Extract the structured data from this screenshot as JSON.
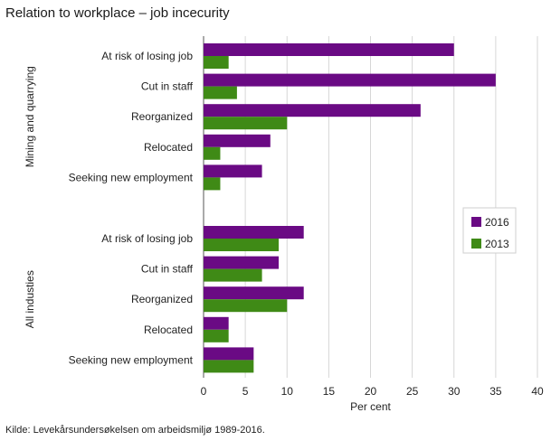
{
  "chart_data": {
    "type": "bar",
    "orientation": "horizontal",
    "title": "Relation to workplace – job incecurity",
    "xlabel": "Per cent",
    "xlim": [
      0,
      40
    ],
    "xticks": [
      0,
      5,
      10,
      15,
      20,
      25,
      30,
      35,
      40
    ],
    "grid": "vertical",
    "legend_position": "right",
    "groups": [
      {
        "name": "Mining and quarrying",
        "categories": [
          "At risk of losing job",
          "Cut in staff",
          "Reorganized",
          "Relocated",
          "Seeking new employment"
        ],
        "series": [
          {
            "name": "2016",
            "values": [
              30,
              35,
              26,
              8,
              7
            ]
          },
          {
            "name": "2013",
            "values": [
              3,
              4,
              10,
              2,
              2
            ]
          }
        ]
      },
      {
        "name": "All industies",
        "categories": [
          "At risk of losing job",
          "Cut in staff",
          "Reorganized",
          "Relocated",
          "Seeking new employment"
        ],
        "series": [
          {
            "name": "2016",
            "values": [
              12,
              9,
              12,
              3,
              6
            ]
          },
          {
            "name": "2013",
            "values": [
              9,
              7,
              10,
              3,
              6
            ]
          }
        ]
      }
    ],
    "colors": {
      "2016": "#6a0a84",
      "2013": "#3f8a16"
    }
  },
  "source": "Kilde: Levekårsundersøkelsen om arbeidsmiljø 1989-2016."
}
